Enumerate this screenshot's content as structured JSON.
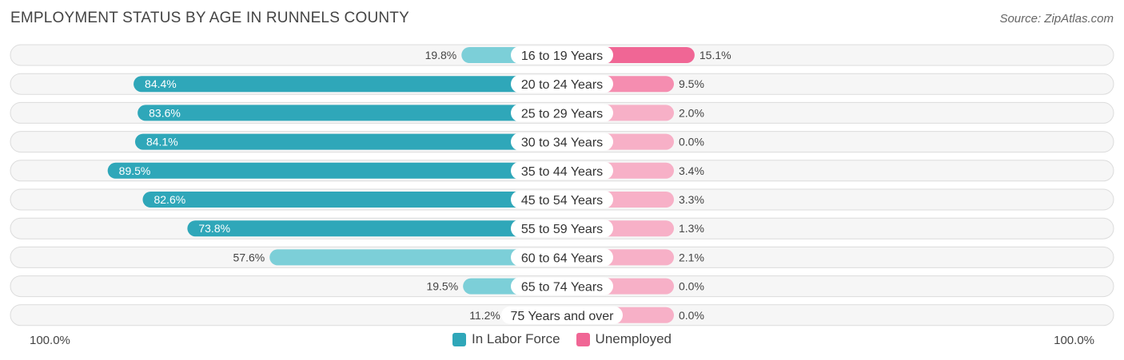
{
  "title": "EMPLOYMENT STATUS BY AGE IN RUNNELS COUNTY",
  "source": "Source: ZipAtlas.com",
  "axis": {
    "left_label": "100.0%",
    "right_label": "100.0%"
  },
  "legend": [
    {
      "label": "In Labor Force",
      "color": "#2fa7b9"
    },
    {
      "label": "Unemployed",
      "color": "#f06695"
    }
  ],
  "colors": {
    "labor_strong": "#2fa7b9",
    "labor_light": "#7ccfd8",
    "unemp_strong": "#f06695",
    "unemp_mid": "#f58db0",
    "unemp_light": "#f7b0c7",
    "row_bg": "#efefef"
  },
  "chart_data": {
    "type": "bar",
    "orientation": "horizontal-diverging",
    "title": "EMPLOYMENT STATUS BY AGE IN RUNNELS COUNTY",
    "categories": [
      "16 to 19 Years",
      "20 to 24 Years",
      "25 to 29 Years",
      "30 to 34 Years",
      "35 to 44 Years",
      "45 to 54 Years",
      "55 to 59 Years",
      "60 to 64 Years",
      "65 to 74 Years",
      "75 Years and over"
    ],
    "series": [
      {
        "name": "In Labor Force",
        "side": "left",
        "values": [
          19.8,
          84.4,
          83.6,
          84.1,
          89.5,
          82.6,
          73.8,
          57.6,
          19.5,
          11.2
        ],
        "labels": [
          "19.8%",
          "84.4%",
          "83.6%",
          "84.1%",
          "89.5%",
          "82.6%",
          "73.8%",
          "57.6%",
          "19.5%",
          "11.2%"
        ]
      },
      {
        "name": "Unemployed",
        "side": "right",
        "values": [
          15.1,
          9.5,
          2.0,
          0.0,
          3.4,
          3.3,
          1.3,
          2.1,
          0.0,
          0.0
        ],
        "labels": [
          "15.1%",
          "9.5%",
          "2.0%",
          "0.0%",
          "3.4%",
          "3.3%",
          "1.3%",
          "2.1%",
          "0.0%",
          "0.0%"
        ]
      }
    ],
    "xlim_left": [
      0,
      100
    ],
    "xlim_right": [
      0,
      100
    ]
  }
}
